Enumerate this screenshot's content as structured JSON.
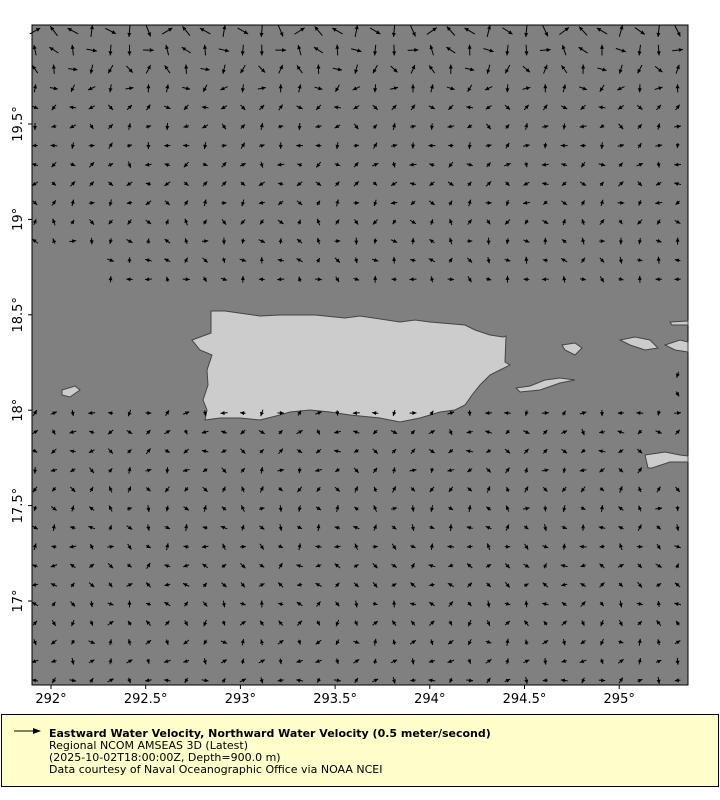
{
  "map": {
    "type": "vector-field",
    "lon_range": [
      291.9,
      295.33
    ],
    "lat_range": [
      16.56,
      20.02
    ],
    "x_ticks": [
      "292°",
      "292.5°",
      "293°",
      "293.5°",
      "294°",
      "294.5°",
      "295°"
    ],
    "y_ticks": [
      "19.5°",
      "19°",
      "18.5°",
      "18°",
      "17.5°",
      "17°"
    ],
    "ocean_color": "#808080",
    "land_color": "#cccccc",
    "arrow_color": "#000000"
  },
  "legend": {
    "title": "Eastward Water Velocity, Northward Water Velocity (0.5 meter/second)",
    "line2": "Regional NCOM AMSEAS 3D (Latest)",
    "line3": "(2025-10-02T18:00:00Z, Depth=900.0 m)",
    "line4": "Data courtesy of Naval Oceanographic Office via NOAA NCEI",
    "background": "#ffffcc"
  }
}
